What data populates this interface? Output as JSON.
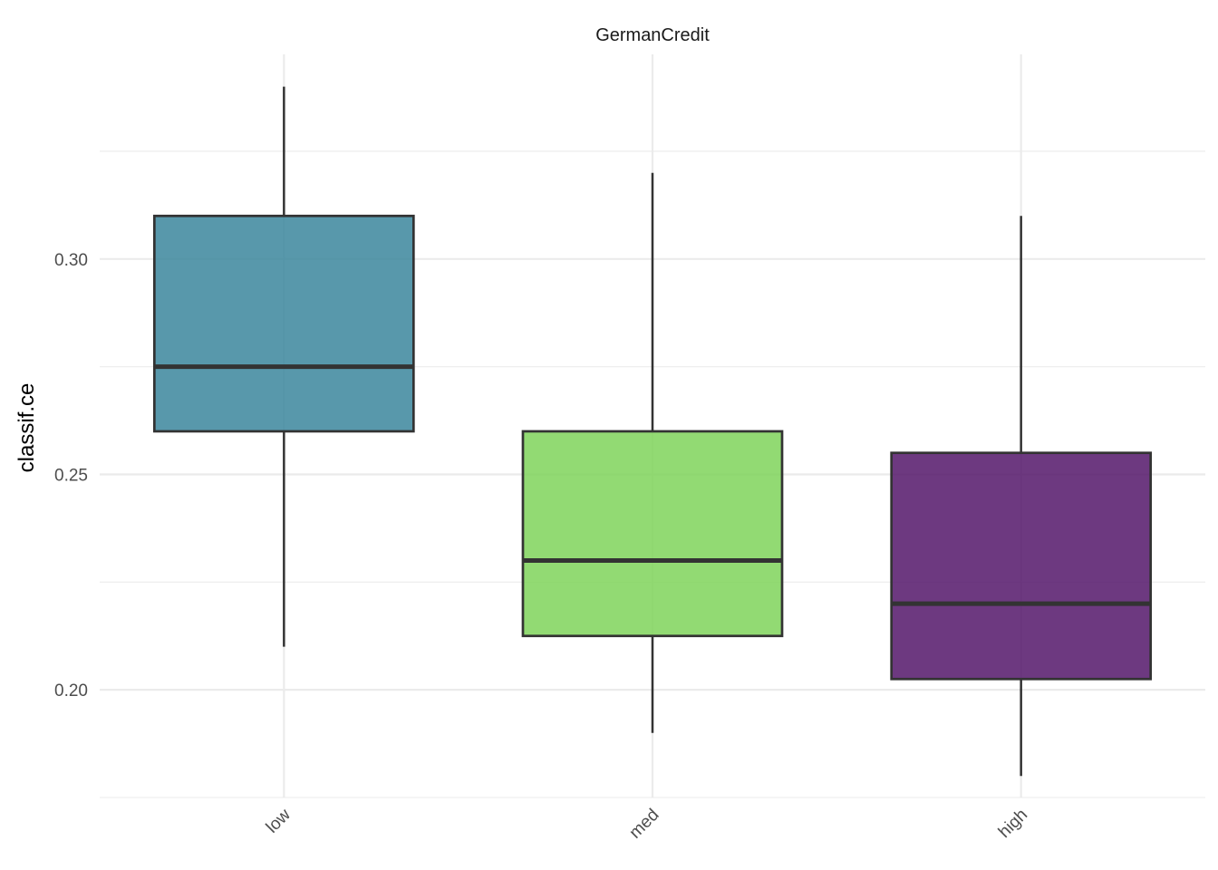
{
  "chart_data": {
    "type": "boxplot",
    "facet_title": "GermanCredit",
    "xlabel": "",
    "ylabel": "classif.ce",
    "categories": [
      "low",
      "med",
      "high"
    ],
    "boxes": [
      {
        "category": "low",
        "min": 0.21,
        "q1": 0.26,
        "median": 0.275,
        "q3": 0.31,
        "max": 0.34,
        "color": "#3B869C"
      },
      {
        "category": "med",
        "min": 0.19,
        "q1": 0.2125,
        "median": 0.23,
        "q3": 0.26,
        "max": 0.32,
        "color": "#7FD45A"
      },
      {
        "category": "high",
        "min": 0.18,
        "q1": 0.2025,
        "median": 0.22,
        "q3": 0.255,
        "max": 0.31,
        "color": "#54166A"
      }
    ],
    "ylim": [
      0.175,
      0.3475
    ],
    "y_ticks": [
      0.2,
      0.25,
      0.3
    ],
    "y_tick_labels": [
      "0.20",
      "0.25",
      "0.30"
    ],
    "grid": true,
    "legend": "none"
  }
}
